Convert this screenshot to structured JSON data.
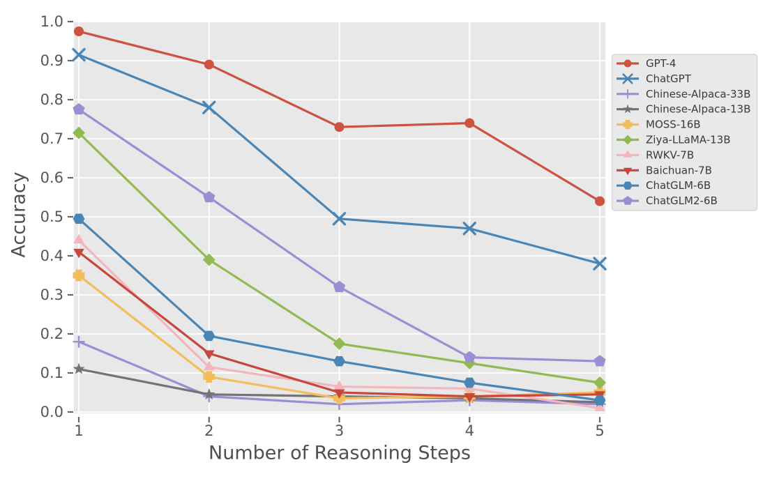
{
  "chart_data": {
    "type": "line",
    "title": "",
    "xlabel": "Number of Reasoning Steps",
    "ylabel": "Accuracy",
    "x": [
      1,
      2,
      3,
      4,
      5
    ],
    "xtick_labels": [
      "1",
      "2",
      "3",
      "4",
      "5"
    ],
    "ytick_labels": [
      "0.0",
      "0.1",
      "0.2",
      "0.3",
      "0.4",
      "0.5",
      "0.6",
      "0.7",
      "0.8",
      "0.9",
      "1.0"
    ],
    "ylim": [
      0.0,
      1.0
    ],
    "grid": true,
    "plot_background": "#E8E8E8",
    "grid_color": "#FFFFFF",
    "tick_color": "#666666",
    "tick_text_color": "#555555",
    "legend": {
      "position": "right",
      "background": "#E9E9E9",
      "border": "#D2D2D2",
      "text_color": "#3A3A3A"
    },
    "series": [
      {
        "name": "GPT-4",
        "marker": "circle",
        "color": "#CE5242",
        "values": [
          0.975,
          0.89,
          0.73,
          0.74,
          0.54
        ]
      },
      {
        "name": "ChatGPT",
        "marker": "x",
        "color": "#4A86B5",
        "values": [
          0.915,
          0.78,
          0.495,
          0.47,
          0.38
        ]
      },
      {
        "name": "Chinese-Alpaca-33B",
        "marker": "plus",
        "color": "#9A8FD3",
        "values": [
          0.18,
          0.04,
          0.02,
          0.03,
          0.02
        ]
      },
      {
        "name": "Chinese-Alpaca-13B",
        "marker": "star",
        "color": "#737376",
        "values": [
          0.11,
          0.045,
          0.04,
          0.035,
          0.025
        ]
      },
      {
        "name": "MOSS-16B",
        "marker": "plus-filled",
        "color": "#F2BE5D",
        "values": [
          0.35,
          0.09,
          0.035,
          0.04,
          0.05
        ]
      },
      {
        "name": "Ziya-LLaMA-13B",
        "marker": "diamond",
        "color": "#92BA52",
        "values": [
          0.715,
          0.39,
          0.175,
          0.125,
          0.075
        ]
      },
      {
        "name": "RWKV-7B",
        "marker": "triangle-up",
        "color": "#F3B6BD",
        "values": [
          0.44,
          0.115,
          0.065,
          0.06,
          0.01
        ]
      },
      {
        "name": "Baichuan-7B",
        "marker": "triangle-down",
        "color": "#C8463C",
        "values": [
          0.41,
          0.15,
          0.05,
          0.04,
          0.045
        ]
      },
      {
        "name": "ChatGLM-6B",
        "marker": "hexagon",
        "color": "#4A86B5",
        "values": [
          0.495,
          0.195,
          0.13,
          0.075,
          0.03
        ]
      },
      {
        "name": "ChatGLM2-6B",
        "marker": "pentagon",
        "color": "#9A8FD3",
        "values": [
          0.775,
          0.55,
          0.32,
          0.14,
          0.13
        ]
      }
    ]
  }
}
